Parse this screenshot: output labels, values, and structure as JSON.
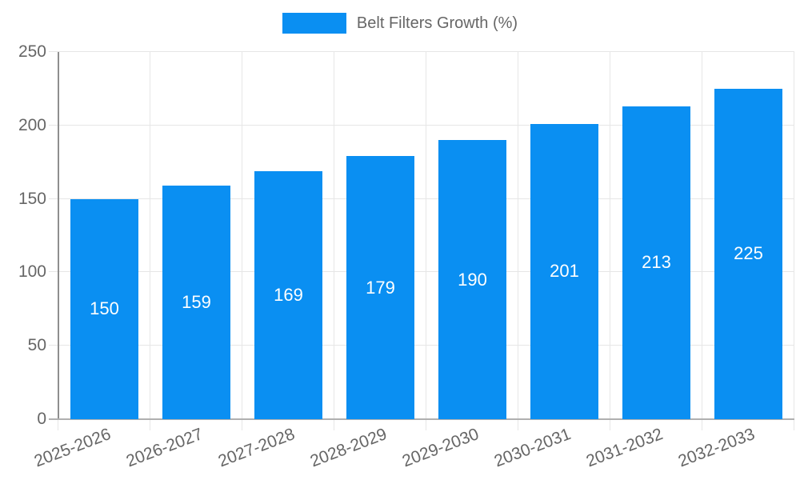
{
  "chart_data": {
    "type": "bar",
    "series_name": "Belt Filters Growth (%)",
    "categories": [
      "2025-2026",
      "2026-2027",
      "2027-2028",
      "2028-2029",
      "2029-2030",
      "2030-2031",
      "2031-2032",
      "2032-2033"
    ],
    "values": [
      150,
      159,
      169,
      179,
      190,
      201,
      213,
      225
    ],
    "ylim": [
      0,
      250
    ],
    "yticks": [
      0,
      50,
      100,
      150,
      200,
      250
    ],
    "grid": true,
    "legend_position": "top",
    "x_tick_rotation_deg": -21,
    "bar_color": "#0a8ff2",
    "bar_label_color": "#ffffff",
    "tick_text_color": "#666666",
    "grid_color": "#e6e6e6",
    "y_axis_line_color": "#8f8f8f",
    "x_axis_line_color": "#b0b0b0"
  }
}
